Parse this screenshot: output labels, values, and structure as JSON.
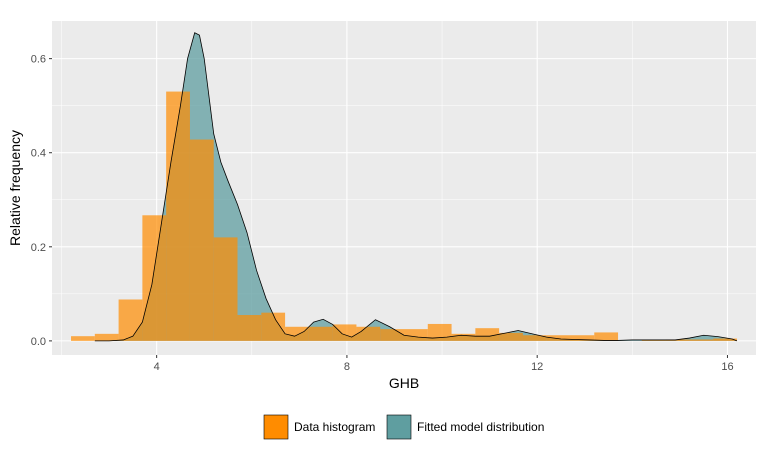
{
  "chart_data": {
    "type": "histogram-density",
    "xlabel": "GHB",
    "ylabel": "Relative frequency",
    "xlim": [
      1.8,
      16.6
    ],
    "ylim": [
      -0.03,
      0.68
    ],
    "x_ticks": [
      {
        "value": 4,
        "label": "4"
      },
      {
        "value": 8,
        "label": "8"
      },
      {
        "value": 12,
        "label": "12"
      },
      {
        "value": 16,
        "label": "16"
      }
    ],
    "y_ticks": [
      {
        "value": 0.0,
        "label": "0.0"
      },
      {
        "value": 0.2,
        "label": "0.2"
      },
      {
        "value": 0.4,
        "label": "0.4"
      },
      {
        "value": 0.6,
        "label": "0.6"
      }
    ],
    "grid": true,
    "legend_position": "bottom",
    "histogram": {
      "name": "Data histogram",
      "color": "#ff8c00",
      "bins": [
        {
          "x0": 2.2,
          "x1": 2.7,
          "y": 0.01
        },
        {
          "x0": 2.7,
          "x1": 3.2,
          "y": 0.015
        },
        {
          "x0": 3.2,
          "x1": 3.7,
          "y": 0.088
        },
        {
          "x0": 3.7,
          "x1": 4.2,
          "y": 0.267
        },
        {
          "x0": 4.2,
          "x1": 4.7,
          "y": 0.53
        },
        {
          "x0": 4.7,
          "x1": 5.2,
          "y": 0.428
        },
        {
          "x0": 5.2,
          "x1": 5.7,
          "y": 0.22
        },
        {
          "x0": 5.7,
          "x1": 6.2,
          "y": 0.055
        },
        {
          "x0": 6.2,
          "x1": 6.7,
          "y": 0.06
        },
        {
          "x0": 6.7,
          "x1": 7.2,
          "y": 0.03
        },
        {
          "x0": 7.2,
          "x1": 7.7,
          "y": 0.03
        },
        {
          "x0": 7.7,
          "x1": 8.2,
          "y": 0.035
        },
        {
          "x0": 8.2,
          "x1": 8.7,
          "y": 0.03
        },
        {
          "x0": 8.7,
          "x1": 9.2,
          "y": 0.025
        },
        {
          "x0": 9.2,
          "x1": 9.7,
          "y": 0.025
        },
        {
          "x0": 9.7,
          "x1": 10.2,
          "y": 0.036
        },
        {
          "x0": 10.2,
          "x1": 10.7,
          "y": 0.015
        },
        {
          "x0": 10.7,
          "x1": 11.2,
          "y": 0.027
        },
        {
          "x0": 11.2,
          "x1": 11.7,
          "y": 0.017
        },
        {
          "x0": 11.7,
          "x1": 12.2,
          "y": 0.012
        },
        {
          "x0": 12.2,
          "x1": 12.7,
          "y": 0.012
        },
        {
          "x0": 12.7,
          "x1": 13.2,
          "y": 0.012
        },
        {
          "x0": 13.2,
          "x1": 13.7,
          "y": 0.018
        },
        {
          "x0": 13.7,
          "x1": 14.2,
          "y": 0.0
        },
        {
          "x0": 14.2,
          "x1": 14.7,
          "y": 0.002
        },
        {
          "x0": 14.7,
          "x1": 15.2,
          "y": 0.003
        },
        {
          "x0": 15.2,
          "x1": 15.7,
          "y": 0.003
        },
        {
          "x0": 15.7,
          "x1": 16.2,
          "y": 0.005
        }
      ]
    },
    "density": {
      "name": "Fitted model distribution",
      "color": "#5f9ea0",
      "points": [
        [
          2.7,
          0.0
        ],
        [
          3.0,
          0.0
        ],
        [
          3.3,
          0.002
        ],
        [
          3.5,
          0.01
        ],
        [
          3.7,
          0.04
        ],
        [
          3.9,
          0.12
        ],
        [
          4.1,
          0.25
        ],
        [
          4.3,
          0.38
        ],
        [
          4.5,
          0.5
        ],
        [
          4.65,
          0.6
        ],
        [
          4.8,
          0.655
        ],
        [
          4.9,
          0.65
        ],
        [
          5.0,
          0.6
        ],
        [
          5.1,
          0.52
        ],
        [
          5.2,
          0.44
        ],
        [
          5.35,
          0.38
        ],
        [
          5.5,
          0.34
        ],
        [
          5.7,
          0.29
        ],
        [
          5.9,
          0.23
        ],
        [
          6.1,
          0.15
        ],
        [
          6.3,
          0.09
        ],
        [
          6.5,
          0.045
        ],
        [
          6.7,
          0.015
        ],
        [
          6.9,
          0.01
        ],
        [
          7.1,
          0.02
        ],
        [
          7.3,
          0.04
        ],
        [
          7.5,
          0.046
        ],
        [
          7.7,
          0.035
        ],
        [
          7.9,
          0.015
        ],
        [
          8.1,
          0.008
        ],
        [
          8.3,
          0.02
        ],
        [
          8.6,
          0.045
        ],
        [
          8.9,
          0.03
        ],
        [
          9.2,
          0.012
        ],
        [
          9.5,
          0.008
        ],
        [
          9.8,
          0.006
        ],
        [
          10.1,
          0.008
        ],
        [
          10.4,
          0.012
        ],
        [
          10.7,
          0.01
        ],
        [
          11.0,
          0.01
        ],
        [
          11.3,
          0.016
        ],
        [
          11.6,
          0.022
        ],
        [
          11.9,
          0.015
        ],
        [
          12.2,
          0.008
        ],
        [
          12.5,
          0.004
        ],
        [
          12.8,
          0.003
        ],
        [
          13.1,
          0.002
        ],
        [
          13.4,
          0.001
        ],
        [
          13.7,
          0.001
        ],
        [
          14.0,
          0.002
        ],
        [
          14.3,
          0.002
        ],
        [
          14.6,
          0.002
        ],
        [
          14.9,
          0.002
        ],
        [
          15.2,
          0.006
        ],
        [
          15.5,
          0.012
        ],
        [
          15.8,
          0.009
        ],
        [
          16.1,
          0.004
        ],
        [
          16.2,
          0.0
        ]
      ]
    },
    "legend": [
      {
        "label": "Data histogram",
        "color": "#ff8c00"
      },
      {
        "label": "Fitted model distribution",
        "color": "#5f9ea0"
      }
    ]
  }
}
